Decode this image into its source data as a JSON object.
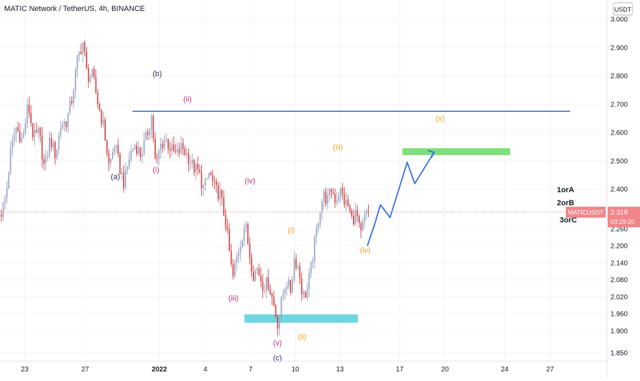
{
  "header": {
    "title": "MATIC Network / TetherUS, 4h, BINANCE",
    "currency": "USDT"
  },
  "price_tag": {
    "symbol": "MATICUSDT",
    "price": "2.319",
    "countdown": "03:19:20",
    "color": "#f0868a"
  },
  "colors": {
    "up": "#9aa6c4",
    "down": "#d44a4a",
    "resistance_line": "#2a5fc2",
    "projection": "#2f6de8",
    "target_zone": "#7ee07a",
    "support_zone": "#6ed6e0",
    "wave_pink": "#c2307a",
    "wave_orange": "#f0a020",
    "wave_navy": "#2a2a6a"
  },
  "chart_data": {
    "type": "candlestick",
    "y_ticks": [
      "3.000",
      "2.900",
      "2.800",
      "2.700",
      "2.600",
      "2.500",
      "2.400",
      "2.320",
      "2.260",
      "2.200",
      "2.140",
      "2.080",
      "2.020",
      "1.960",
      "1.900",
      "1.850"
    ],
    "x_ticks": [
      {
        "label": "23",
        "bold": false
      },
      {
        "label": "27",
        "bold": false
      },
      {
        "label": "2022",
        "bold": true
      },
      {
        "label": "4",
        "bold": false
      },
      {
        "label": "7",
        "bold": false
      },
      {
        "label": "10",
        "bold": false
      },
      {
        "label": "13",
        "bold": false
      },
      {
        "label": "17",
        "bold": false
      },
      {
        "label": "20",
        "bold": false
      },
      {
        "label": "24",
        "bold": false
      },
      {
        "label": "27",
        "bold": false
      }
    ],
    "resistance_level": 2.675,
    "current_price": 2.319,
    "target_zone": {
      "from": 2.515,
      "to": 2.535
    },
    "support_zone": {
      "from": 1.942,
      "to": 1.958
    },
    "wave_labels": [
      {
        "text": "(b)",
        "color": "navy"
      },
      {
        "text": "(a)",
        "color": "navy"
      },
      {
        "text": "(c)",
        "color": "navy"
      },
      {
        "text": "(ii)",
        "color": "pink"
      },
      {
        "text": "(i)",
        "color": "pink"
      },
      {
        "text": "(iv)",
        "color": "pink"
      },
      {
        "text": "(iii)",
        "color": "pink"
      },
      {
        "text": "(v)",
        "color": "pink"
      },
      {
        "text": "(i)",
        "color": "orange"
      },
      {
        "text": "(ii)",
        "color": "orange"
      },
      {
        "text": "(iii)",
        "color": "orange"
      },
      {
        "text": "(iv)",
        "color": "orange"
      },
      {
        "text": "(v)",
        "color": "orange"
      }
    ],
    "scenario_labels": [
      "1orA",
      "2orB",
      "3orC"
    ]
  }
}
